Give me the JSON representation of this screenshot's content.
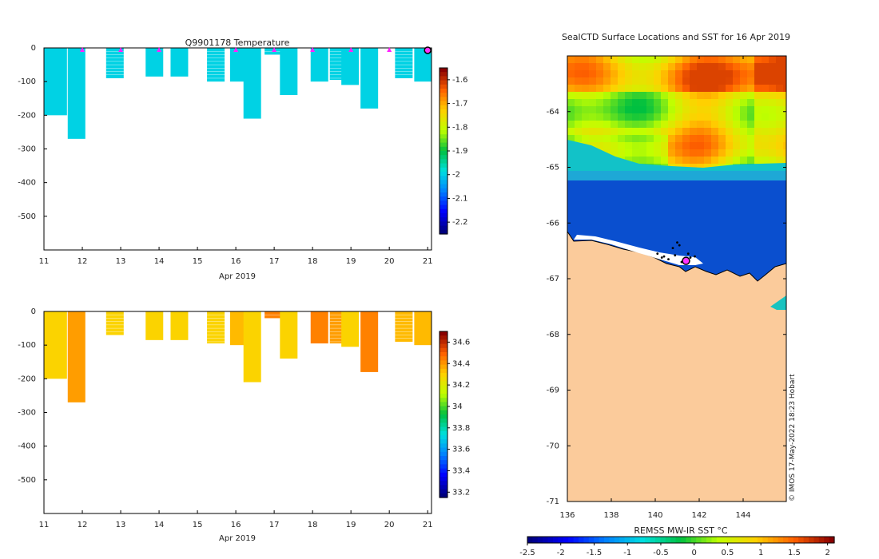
{
  "figure": {
    "watermark": "© IMOS 17-May-2022 18:23 Hobart"
  },
  "chart_data": [
    {
      "type": "heatmap",
      "title": "Q9901178  Temperature",
      "xlabel": "Apr 2019",
      "ylabel": "",
      "xlim": [
        11,
        21.1
      ],
      "ylim": [
        -600,
        0
      ],
      "x_ticks": [
        "11",
        "12",
        "13",
        "14",
        "15",
        "16",
        "17",
        "18",
        "19",
        "20",
        "21"
      ],
      "y_ticks": [
        "0",
        "-100",
        "-200",
        "-300",
        "-400",
        "-500"
      ],
      "colorbar": {
        "ticks": [
          "-1.6",
          "-1.7",
          "-1.8",
          "-1.9",
          "-2",
          "-2.1",
          "-2.2"
        ],
        "range": [
          -2.25,
          -1.55
        ]
      },
      "profiles": [
        {
          "day": 11.0,
          "depth": 200,
          "value": -2.0
        },
        {
          "day": 11.62,
          "depth": 270,
          "value": -2.0
        },
        {
          "day": 12.62,
          "depth": 90,
          "value": -2.0
        },
        {
          "day": 13.65,
          "depth": 85,
          "value": -2.0
        },
        {
          "day": 14.3,
          "depth": 85,
          "value": -2.0
        },
        {
          "day": 15.25,
          "depth": 100,
          "value": -2.0
        },
        {
          "day": 15.85,
          "depth": 100,
          "value": -2.0
        },
        {
          "day": 16.2,
          "depth": 210,
          "value": -2.0
        },
        {
          "day": 16.75,
          "depth": 20,
          "value": -2.0
        },
        {
          "day": 17.15,
          "depth": 140,
          "value": -2.0
        },
        {
          "day": 17.95,
          "depth": 100,
          "value": -2.0
        },
        {
          "day": 18.45,
          "depth": 95,
          "value": -2.0
        },
        {
          "day": 18.75,
          "depth": 110,
          "value": -2.0
        },
        {
          "day": 19.25,
          "depth": 180,
          "value": -2.0
        },
        {
          "day": 20.15,
          "depth": 90,
          "value": -2.0
        },
        {
          "day": 20.65,
          "depth": 100,
          "value": -2.0
        }
      ],
      "surface_markers": [
        12,
        13,
        14,
        16,
        17,
        18,
        19,
        20,
        21
      ]
    },
    {
      "type": "heatmap",
      "title": "",
      "xlabel": "Apr 2019",
      "ylabel": "",
      "xlim": [
        11,
        21.1
      ],
      "ylim": [
        -600,
        0
      ],
      "x_ticks": [
        "11",
        "12",
        "13",
        "14",
        "15",
        "16",
        "17",
        "18",
        "19",
        "20",
        "21"
      ],
      "y_ticks": [
        "0",
        "-100",
        "-200",
        "-300",
        "-400",
        "-500"
      ],
      "colorbar": {
        "ticks": [
          "34.6",
          "34.4",
          "34.2",
          "34",
          "33.8",
          "33.6",
          "33.4",
          "33.2"
        ],
        "range": [
          33.15,
          34.7
        ]
      },
      "profiles": [
        {
          "day": 11.0,
          "depth": 200,
          "value": 34.3
        },
        {
          "day": 11.62,
          "depth": 270,
          "value": 34.4
        },
        {
          "day": 12.62,
          "depth": 70,
          "value": 34.3
        },
        {
          "day": 13.65,
          "depth": 85,
          "value": 34.3
        },
        {
          "day": 14.3,
          "depth": 85,
          "value": 34.3
        },
        {
          "day": 15.25,
          "depth": 95,
          "value": 34.3
        },
        {
          "day": 15.85,
          "depth": 100,
          "value": 34.35
        },
        {
          "day": 16.2,
          "depth": 210,
          "value": 34.3
        },
        {
          "day": 16.75,
          "depth": 20,
          "value": 34.45
        },
        {
          "day": 17.15,
          "depth": 140,
          "value": 34.3
        },
        {
          "day": 17.95,
          "depth": 95,
          "value": 34.45
        },
        {
          "day": 18.45,
          "depth": 95,
          "value": 34.4
        },
        {
          "day": 18.75,
          "depth": 105,
          "value": 34.3
        },
        {
          "day": 19.25,
          "depth": 180,
          "value": 34.45
        },
        {
          "day": 20.15,
          "depth": 90,
          "value": 34.35
        },
        {
          "day": 20.65,
          "depth": 100,
          "value": 34.35
        }
      ]
    },
    {
      "type": "heatmap",
      "title": "SealCTD Surface Locations and SST for 16 Apr 2019",
      "xlabel": "",
      "ylabel": "",
      "xlim": [
        136,
        146
      ],
      "ylim": [
        -71,
        -63
      ],
      "x_ticks": [
        "136",
        "138",
        "140",
        "142",
        "144"
      ],
      "y_ticks": [
        "-64",
        "-65",
        "-66",
        "-67",
        "-68",
        "-69",
        "-70",
        "-71"
      ],
      "colorbar": {
        "label": "REMSS MW-IR SST °C",
        "ticks": [
          "-2.5",
          "-2",
          "-1.5",
          "-1",
          "-0.5",
          "0",
          "0.5",
          "1",
          "1.5",
          "2"
        ],
        "range": [
          -2.5,
          2.1
        ]
      },
      "regions": [
        {
          "name": "open-ocean",
          "lat_range": [
            -65.0,
            -63.0
          ],
          "sst_range": [
            0.0,
            1.6
          ]
        },
        {
          "name": "ice-edge",
          "lat_range": [
            -65.25,
            -64.8
          ],
          "sst_range": [
            -1.5,
            -0.5
          ]
        },
        {
          "name": "sea-ice-cold",
          "lat_range": [
            -66.8,
            -65.25
          ],
          "sst": -1.9
        },
        {
          "name": "antarctic-land",
          "lat_range": [
            -71.0,
            -66.2
          ]
        }
      ],
      "seal_positions": [
        {
          "lon": 140.1,
          "lat": -66.55
        },
        {
          "lon": 140.4,
          "lat": -66.6
        },
        {
          "lon": 140.8,
          "lat": -66.45
        },
        {
          "lon": 141.1,
          "lat": -66.4
        },
        {
          "lon": 141.5,
          "lat": -66.55
        },
        {
          "lon": 141.8,
          "lat": -66.6
        },
        {
          "lon": 140.6,
          "lat": -66.65
        },
        {
          "lon": 141.2,
          "lat": -66.7
        },
        {
          "lon": 141.0,
          "lat": -66.35
        },
        {
          "lon": 140.3,
          "lat": -66.62
        },
        {
          "lon": 141.6,
          "lat": -66.62
        },
        {
          "lon": 140.9,
          "lat": -66.58
        }
      ],
      "current_position": {
        "lon": 141.4,
        "lat": -66.68
      }
    }
  ]
}
